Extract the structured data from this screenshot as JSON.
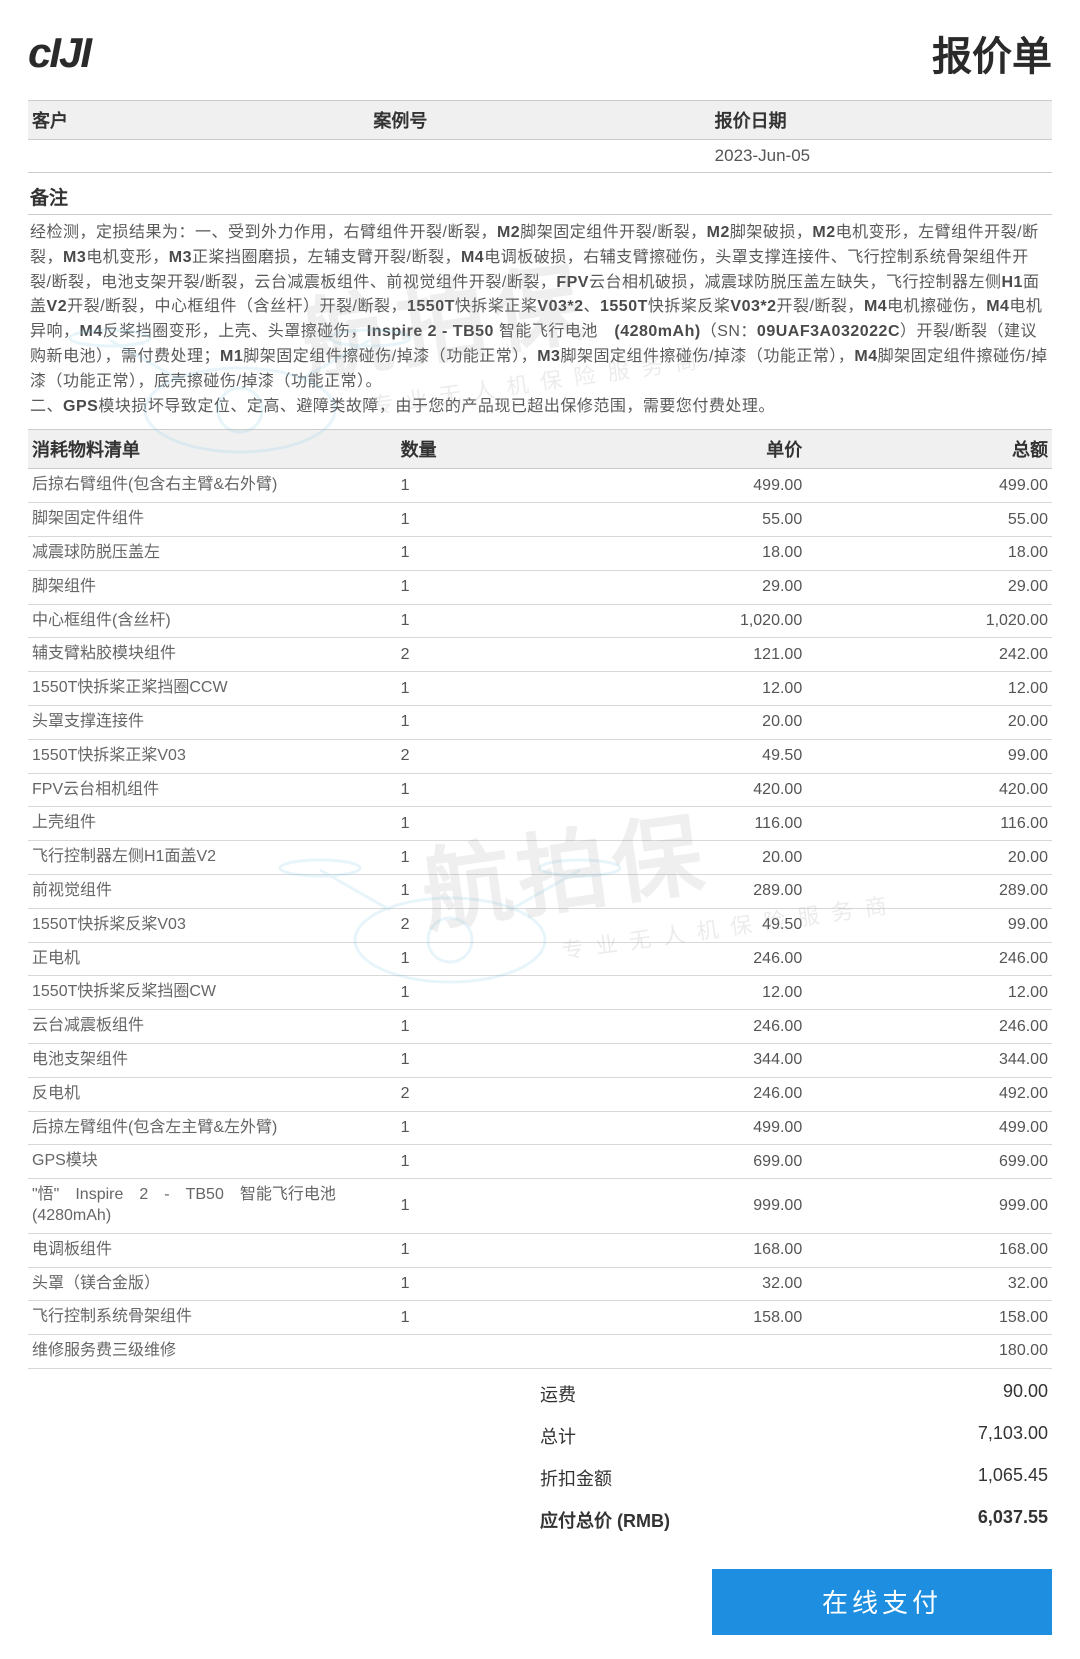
{
  "brand": "cIJI",
  "title": "报价单",
  "info_headers": {
    "customer": "客户",
    "case_no": "案例号",
    "quote_date": "报价日期"
  },
  "info_values": {
    "customer": "",
    "case_no": "",
    "quote_date": "2023-Jun-05"
  },
  "remarks_label": "备注",
  "remarks_html": "经检测，定损结果为：一、受到外力作用，右臂组件开裂/断裂，<b>M2</b>脚架固定组件开裂/断裂，<b>M2</b>脚架破损，<b>M2</b>电机变形，左臂组件开裂/断裂，<b>M3</b>电机变形，<b>M3</b>正桨挡圈磨损，左辅支臂开裂/断裂，<b>M4</b>电调板破损，右辅支臂擦碰伤，头罩支撑连接件、飞行控制系统骨架组件开裂/断裂，电池支架开裂/断裂，云台减震板组件、前视觉组件开裂/断裂，<b>FPV</b>云台相机破损，减震球防脱压盖左缺失，飞行控制器左侧<b>H1</b>面盖<b>V2</b>开裂/断裂，中心框组件（含丝杆）开裂/断裂，<b>1550T</b>快拆桨正桨<b>V03*2</b>、<b>1550T</b>快拆桨反桨<b>V03*2</b>开裂/断裂，<b>M4</b>电机擦碰伤，<b>M4</b>电机异响，<b>M4</b>反桨挡圈变形，上壳、头罩擦碰伤，<b>Inspire 2 - TB50</b> 智能飞行电池　<b>(4280mAh)</b>（SN：<b>09UAF3A032022C</b>）开裂/断裂（建议购新电池），需付费处理；<b>M1</b>脚架固定组件擦碰伤/掉漆（功能正常），<b>M3</b>脚架固定组件擦碰伤/掉漆（功能正常），<b>M4</b>脚架固定组件擦碰伤/掉漆（功能正常），底壳擦碰伤/掉漆（功能正常）。<br>二、<b>GPS</b>模块损坏导致定位、定高、避障类故障，由于您的产品现已超出保修范围，需要您付费处理。",
  "items_headers": {
    "name": "消耗物料清单",
    "qty": "数量",
    "unit": "单价",
    "total": "总额"
  },
  "items": [
    {
      "name": "后掠右臂组件(包含右主臂&右外臂)",
      "qty": "1",
      "unit": "499.00",
      "total": "499.00"
    },
    {
      "name": "脚架固定件组件",
      "qty": "1",
      "unit": "55.00",
      "total": "55.00"
    },
    {
      "name": "减震球防脱压盖左",
      "qty": "1",
      "unit": "18.00",
      "total": "18.00"
    },
    {
      "name": "脚架组件",
      "qty": "1",
      "unit": "29.00",
      "total": "29.00"
    },
    {
      "name": "中心框组件(含丝杆)",
      "qty": "1",
      "unit": "1,020.00",
      "total": "1,020.00"
    },
    {
      "name": "辅支臂粘胶模块组件",
      "qty": "2",
      "unit": "121.00",
      "total": "242.00"
    },
    {
      "name": "1550T快拆桨正桨挡圈CCW",
      "qty": "1",
      "unit": "12.00",
      "total": "12.00"
    },
    {
      "name": "头罩支撑连接件",
      "qty": "1",
      "unit": "20.00",
      "total": "20.00"
    },
    {
      "name": "1550T快拆桨正桨V03",
      "qty": "2",
      "unit": "49.50",
      "total": "99.00"
    },
    {
      "name": "FPV云台相机组件",
      "qty": "1",
      "unit": "420.00",
      "total": "420.00"
    },
    {
      "name": "上壳组件",
      "qty": "1",
      "unit": "116.00",
      "total": "116.00"
    },
    {
      "name": "飞行控制器左侧H1面盖V2",
      "qty": "1",
      "unit": "20.00",
      "total": "20.00"
    },
    {
      "name": "前视觉组件",
      "qty": "1",
      "unit": "289.00",
      "total": "289.00"
    },
    {
      "name": "1550T快拆桨反桨V03",
      "qty": "2",
      "unit": "49.50",
      "total": "99.00"
    },
    {
      "name": "正电机",
      "qty": "1",
      "unit": "246.00",
      "total": "246.00"
    },
    {
      "name": "1550T快拆桨反桨挡圈CW",
      "qty": "1",
      "unit": "12.00",
      "total": "12.00"
    },
    {
      "name": "云台减震板组件",
      "qty": "1",
      "unit": "246.00",
      "total": "246.00"
    },
    {
      "name": "电池支架组件",
      "qty": "1",
      "unit": "344.00",
      "total": "344.00"
    },
    {
      "name": "反电机",
      "qty": "2",
      "unit": "246.00",
      "total": "492.00"
    },
    {
      "name": "后掠左臂组件(包含左主臂&左外臂)",
      "qty": "1",
      "unit": "499.00",
      "total": "499.00"
    },
    {
      "name": "GPS模块",
      "qty": "1",
      "unit": "699.00",
      "total": "699.00"
    },
    {
      "name": "\"悟\"　Inspire　2　-　TB50　智能飞行电池(4280mAh)",
      "qty": "1",
      "unit": "999.00",
      "total": "999.00"
    },
    {
      "name": "电调板组件",
      "qty": "1",
      "unit": "168.00",
      "total": "168.00"
    },
    {
      "name": "头罩（镁合金版）",
      "qty": "1",
      "unit": "32.00",
      "total": "32.00"
    },
    {
      "name": "飞行控制系统骨架组件",
      "qty": "1",
      "unit": "158.00",
      "total": "158.00"
    },
    {
      "name": "维修服务费三级维修",
      "qty": "",
      "unit": "",
      "total": "180.00"
    }
  ],
  "summary": [
    {
      "label": "运费",
      "value": "90.00",
      "bold": false
    },
    {
      "label": "总计",
      "value": "7,103.00",
      "bold": false
    },
    {
      "label": "折扣金额",
      "value": "1,065.45",
      "bold": false
    },
    {
      "label": "应付总价 (RMB)",
      "value": "6,037.55",
      "bold": true
    }
  ],
  "pay_button": "在线支付",
  "watermark_main": "航拍保",
  "watermark_sub": "专业无人机保险服务商",
  "colors": {
    "header_bg": "#f0f0f0",
    "border": "#cccccc",
    "row_border": "#d8d8d8",
    "text": "#333333",
    "muted": "#666666",
    "button_bg": "#1e8fe0",
    "button_fg": "#ffffff",
    "watermark": "rgba(150,150,150,0.15)",
    "drone_stroke": "#7fc9e8"
  }
}
